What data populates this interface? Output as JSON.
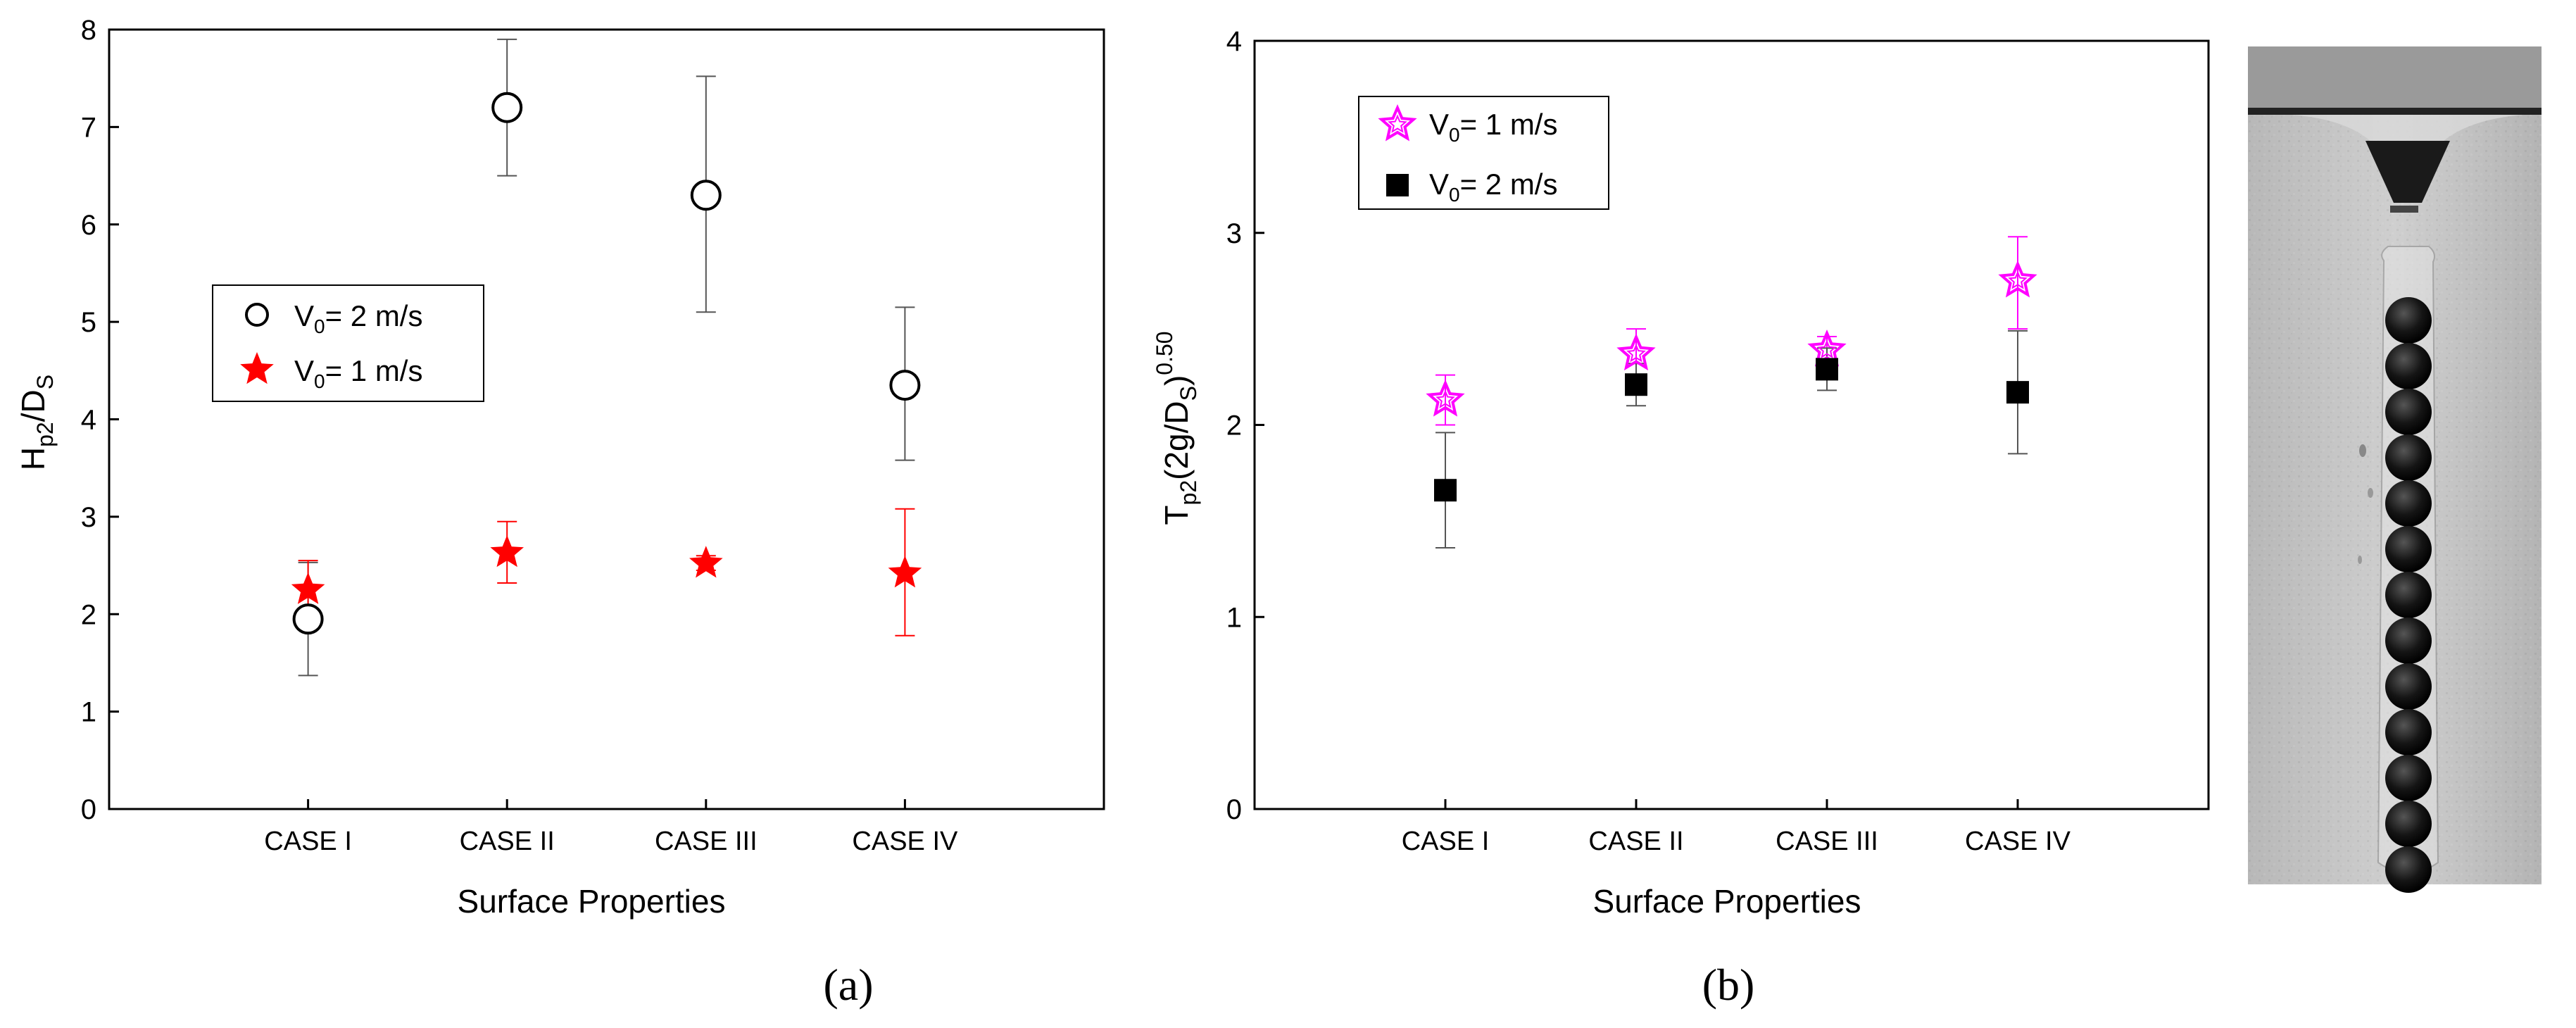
{
  "chart_data": [
    {
      "type": "scatter",
      "panel_label": "(a)",
      "xlabel": "Surface Properties",
      "ylabel": {
        "main": "H",
        "sub1": "p2",
        "mid": "/D",
        "sub2": "S"
      },
      "categories": [
        "CASE I",
        "CASE II",
        "CASE III",
        "CASE IV"
      ],
      "ylim": [
        0,
        8
      ],
      "yticks": [
        "0",
        "1",
        "2",
        "3",
        "4",
        "5",
        "6",
        "7",
        "8"
      ],
      "series": [
        {
          "name": "V0= 2 m/s",
          "legend": {
            "main": "V",
            "sub": "0",
            "rest": "= 2 m/s"
          },
          "marker": "open-circle",
          "color": "#000000",
          "values": [
            1.95,
            7.2,
            6.3,
            4.35
          ],
          "err_low": [
            1.37,
            6.5,
            5.1,
            3.58
          ],
          "err_high": [
            2.53,
            7.9,
            7.52,
            5.15
          ]
        },
        {
          "name": "V0= 1 m/s",
          "legend": {
            "main": "V",
            "sub": "0",
            "rest": "= 1 m/s"
          },
          "marker": "filled-star",
          "color": "#ff0000",
          "values": [
            2.25,
            2.63,
            2.52,
            2.42
          ],
          "err_low": [
            1.95,
            2.32,
            2.45,
            1.78
          ],
          "err_high": [
            2.55,
            2.95,
            2.6,
            3.08
          ]
        }
      ]
    },
    {
      "type": "scatter",
      "panel_label": "(b)",
      "xlabel": "Surface Properties",
      "ylabel": {
        "main": "T",
        "sub1": "p2",
        "mid": "(2g/D",
        "sub2": "S",
        "close": ")",
        "sup": "0.50"
      },
      "categories": [
        "CASE I",
        "CASE II",
        "CASE III",
        "CASE IV"
      ],
      "ylim": [
        0,
        4
      ],
      "yticks": [
        "0",
        "1",
        "2",
        "3",
        "4"
      ],
      "series": [
        {
          "name": "V0= 1 m/s",
          "legend": {
            "main": "V",
            "sub": "0",
            "rest": "= 1 m/s"
          },
          "marker": "open-star",
          "color": "#ff00ff",
          "values": [
            2.13,
            2.37,
            2.39,
            2.75
          ],
          "err_low": [
            2.0,
            2.25,
            2.32,
            2.5
          ],
          "err_high": [
            2.26,
            2.5,
            2.46,
            2.98
          ]
        },
        {
          "name": "V0= 2 m/s",
          "legend": {
            "main": "V",
            "sub": "0",
            "rest": "= 2 m/s"
          },
          "marker": "filled-square",
          "color": "#000000",
          "values": [
            1.66,
            2.21,
            2.29,
            2.17
          ],
          "err_low": [
            1.36,
            2.1,
            2.18,
            1.85
          ],
          "err_high": [
            1.96,
            2.32,
            2.4,
            2.49
          ]
        }
      ]
    }
  ]
}
